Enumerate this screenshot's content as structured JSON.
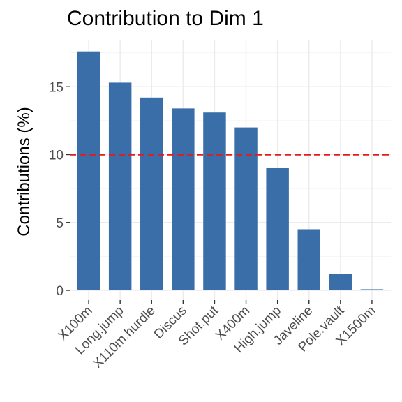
{
  "chart_data": {
    "type": "bar",
    "title": "Contribution to Dim 1",
    "xlabel": "",
    "ylabel": "Contributions (%)",
    "categories": [
      "X100m",
      "Long.jump",
      "X110m.hurdle",
      "Discus",
      "Shot.put",
      "X400m",
      "High.jump",
      "Javeline",
      "Pole.vault",
      "X1500m"
    ],
    "values": [
      17.6,
      15.3,
      14.2,
      13.4,
      13.1,
      12.0,
      9.05,
      4.5,
      1.2,
      0.08
    ],
    "ylim": [
      0,
      18
    ],
    "yticks": [
      0,
      5,
      10,
      15
    ],
    "reference_line": {
      "value": 10,
      "style": "dashed"
    },
    "grid": true,
    "colors": {
      "bar": "#3A6EA8",
      "reference_line": "#E41A1C",
      "grid_major": "#EBEBEB",
      "grid_minor": "#F4F4F4",
      "tick_text": "#4D4D4D",
      "tick_mark": "#333333"
    }
  }
}
